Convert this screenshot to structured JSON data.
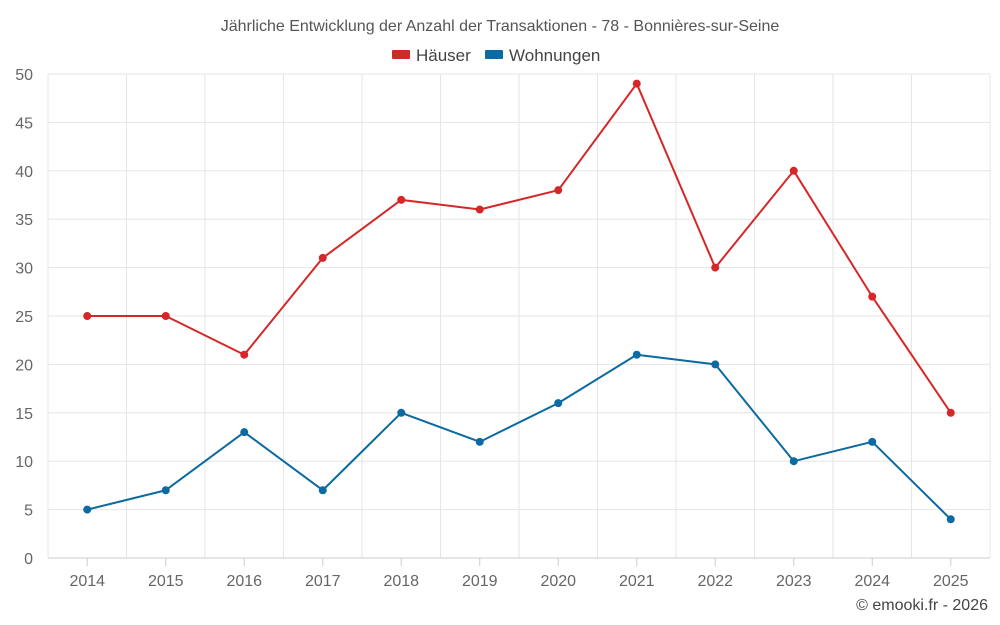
{
  "chart_data": {
    "type": "line",
    "title": "Jährliche Entwicklung der Anzahl der Transaktionen - 78 - Bonnières-sur-Seine",
    "categories": [
      "2014",
      "2015",
      "2016",
      "2017",
      "2018",
      "2019",
      "2020",
      "2021",
      "2022",
      "2023",
      "2024",
      "2025"
    ],
    "series": [
      {
        "name": "Häuser",
        "color": "#d62728",
        "values": [
          25,
          25,
          21,
          31,
          37,
          36,
          38,
          49,
          30,
          40,
          27,
          15
        ]
      },
      {
        "name": "Wohnungen",
        "color": "#0a6aa1",
        "values": [
          5,
          7,
          13,
          7,
          15,
          12,
          16,
          21,
          20,
          10,
          12,
          4
        ]
      }
    ],
    "ylim": [
      0,
      50
    ],
    "yticks": [
      0,
      5,
      10,
      15,
      20,
      25,
      30,
      35,
      40,
      45,
      50
    ],
    "legend_position": "top-center",
    "grid": true,
    "xlabel": "",
    "ylabel": ""
  },
  "credit": "© emooki.fr - 2026"
}
